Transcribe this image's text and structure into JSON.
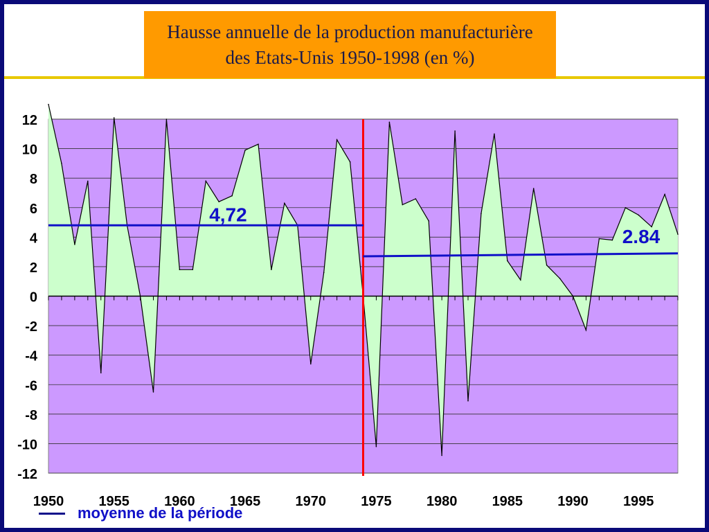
{
  "title": {
    "line1": "Hausse annuelle de la production manufacturière",
    "line2": "des Etats-Unis 1950-1998 (en %)"
  },
  "legend": {
    "label": "moyenne de la période"
  },
  "colors": {
    "plot_bg": "#cc99ff",
    "area_fill": "#ccffcc",
    "mean_line": "#1010c8",
    "divider": "#ff0000",
    "frame": "#0a0a78",
    "title_bg": "#ff9a00"
  },
  "chart_data": {
    "type": "area",
    "title": "Hausse annuelle de la production manufacturière des Etats-Unis 1950-1998 (en %)",
    "x_range": [
      1950,
      1998
    ],
    "ylim": [
      -12,
      12
    ],
    "y_ticks": [
      12,
      10,
      8,
      6,
      4,
      2,
      0,
      -2,
      -4,
      -6,
      -8,
      -10,
      -12
    ],
    "x_tick_labels": [
      "1950",
      "1955",
      "1960",
      "1965",
      "1970",
      "1975",
      "1980",
      "1985",
      "1990",
      "1995"
    ],
    "grid": true,
    "series": [
      {
        "x": [
          1950,
          1951,
          1952,
          1953,
          1954,
          1955,
          1956,
          1957,
          1958,
          1959,
          1960,
          1961,
          1962,
          1963,
          1964,
          1965,
          1966,
          1967,
          1968,
          1969,
          1970,
          1971,
          1972,
          1973,
          1974,
          1975,
          1976,
          1977,
          1978,
          1979,
          1980,
          1981,
          1982,
          1983,
          1984,
          1985,
          1986,
          1987,
          1988,
          1989,
          1990,
          1991,
          1992,
          1993,
          1994,
          1995,
          1996,
          1997,
          1998
        ],
        "values": [
          13.0,
          9.0,
          3.5,
          7.8,
          -5.2,
          12.1,
          4.8,
          0.0,
          -6.5,
          12.0,
          1.8,
          1.8,
          7.8,
          6.4,
          6.8,
          9.9,
          10.3,
          1.8,
          6.3,
          4.8,
          -4.6,
          1.6,
          10.6,
          9.1,
          0.0,
          -10.2,
          11.8,
          6.2,
          6.6,
          5.1,
          -10.8,
          11.2,
          -7.1,
          5.6,
          11.0,
          2.4,
          1.1,
          7.3,
          2.1,
          1.2,
          0.0,
          -2.3,
          3.9,
          3.8,
          6.0,
          5.5,
          4.7,
          6.9,
          4.2
        ]
      }
    ],
    "annotations": [
      {
        "label": "4,72",
        "x_start": 1950,
        "x_end": 1974,
        "y_start": 4.8,
        "y_end": 4.8
      },
      {
        "label": "2.84",
        "x_start": 1974,
        "x_end": 1998,
        "y_start": 2.7,
        "y_end": 2.9
      }
    ],
    "vertical_marker_x": 1974
  }
}
